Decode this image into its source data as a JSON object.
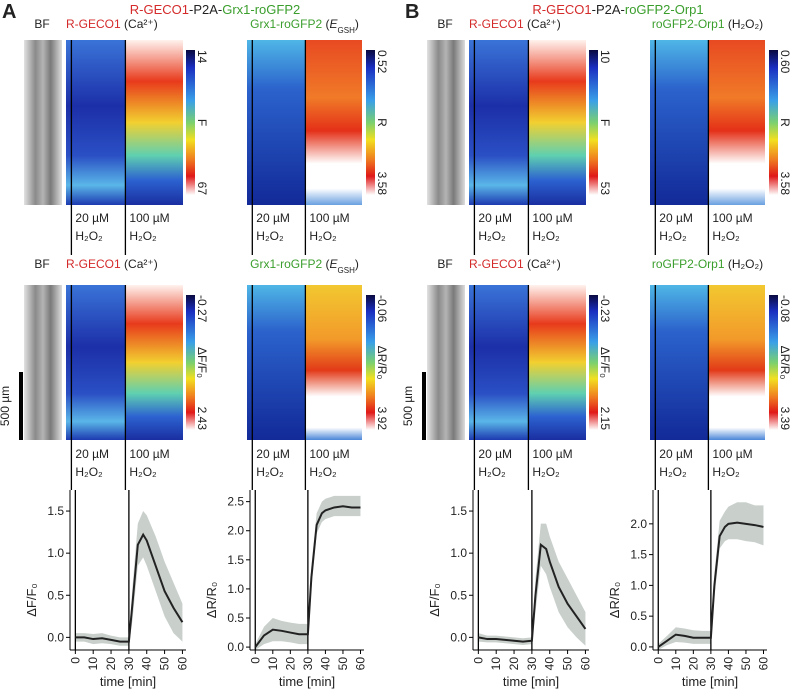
{
  "panels": [
    {
      "letter": "A",
      "title": [
        {
          "text": "R-GECO1",
          "color": "#d42a2a"
        },
        {
          "text": "-P2A-",
          "color": "#222222"
        },
        {
          "text": "Grx1-roGFP2",
          "color": "#3a9e2c"
        }
      ],
      "bf_label": "BF",
      "scale_bar": "500 µm",
      "rows": [
        [
          {
            "sensor": "R-GECO1",
            "sensor_color": "#d42a2a",
            "suffix": "(Ca²⁺)",
            "cbar_label": "F",
            "cbar_min": 14,
            "cbar_max": 67
          },
          {
            "sensor": "Grx1-roGFP2",
            "sensor_color": "#3a9e2c",
            "suffix": {
              "pre": "(",
              "italic": "E",
              "sub": "GSH",
              "post": ")"
            },
            "cbar_label": "R",
            "cbar_min": 0.52,
            "cbar_max": 3.58
          }
        ],
        [
          {
            "sensor": "R-GECO1",
            "sensor_color": "#d42a2a",
            "suffix": "(Ca²⁺)",
            "cbar_label": "ΔF/F₀",
            "cbar_min": -0.27,
            "cbar_max": 2.43
          },
          {
            "sensor": "Grx1-roGFP2",
            "sensor_color": "#3a9e2c",
            "suffix": {
              "pre": "(",
              "italic": "E",
              "sub": "GSH",
              "post": ")"
            },
            "cbar_label": "ΔR/R₀",
            "cbar_min": -0.06,
            "cbar_max": 3.92
          }
        ]
      ]
    },
    {
      "letter": "B",
      "title": [
        {
          "text": "R-GECO1",
          "color": "#d42a2a"
        },
        {
          "text": "-P2A-",
          "color": "#222222"
        },
        {
          "text": "roGFP2-Orp1",
          "color": "#3a9e2c"
        }
      ],
      "bf_label": "BF",
      "scale_bar": "500 µm",
      "rows": [
        [
          {
            "sensor": "R-GECO1",
            "sensor_color": "#d42a2a",
            "suffix": "(Ca²⁺)",
            "cbar_label": "F",
            "cbar_min": 10,
            "cbar_max": 53
          },
          {
            "sensor": "roGFP2-Orp1",
            "sensor_color": "#3a9e2c",
            "suffix": "(H₂O₂)",
            "cbar_label": "R",
            "cbar_min": {
              "value": 0.6,
              "label": "0.60"
            },
            "cbar_max": 3.58
          }
        ],
        [
          {
            "sensor": "R-GECO1",
            "sensor_color": "#d42a2a",
            "suffix": "(Ca²⁺)",
            "cbar_label": "ΔF/F₀",
            "cbar_min": -0.23,
            "cbar_max": 2.15
          },
          {
            "sensor": "roGFP2-Orp1",
            "sensor_color": "#3a9e2c",
            "suffix": "(H₂O₂)",
            "cbar_label": "ΔR/R₀",
            "cbar_min": -0.08,
            "cbar_max": 3.39
          }
        ]
      ]
    }
  ],
  "treatments": [
    {
      "conc": "20 µM",
      "agent": "H₂O₂"
    },
    {
      "conc": "100 µM",
      "agent": "H₂O₂"
    }
  ],
  "chart_data": [
    {
      "type": "line",
      "ylabel": "ΔF/F₀",
      "xlabel": "time [min]",
      "color": "#222222",
      "band_color": "#c9d0cc",
      "x": [
        0,
        5,
        10,
        15,
        20,
        25,
        30,
        32,
        35,
        38,
        40,
        45,
        50,
        55,
        60
      ],
      "values": [
        0,
        0,
        -0.02,
        -0.01,
        -0.03,
        -0.05,
        -0.05,
        0.4,
        1.1,
        1.22,
        1.15,
        0.85,
        0.55,
        0.35,
        0.18
      ],
      "lower": [
        -0.05,
        -0.05,
        -0.08,
        -0.07,
        -0.08,
        -0.1,
        -0.1,
        0.2,
        0.85,
        0.95,
        0.85,
        0.55,
        0.25,
        0.05,
        -0.05
      ],
      "upper": [
        0.05,
        0.05,
        0.04,
        0.05,
        0.02,
        0,
        0,
        0.6,
        1.35,
        1.5,
        1.45,
        1.2,
        0.9,
        0.65,
        0.4
      ],
      "vlines": [
        0,
        30
      ],
      "xlim": [
        -3,
        62
      ],
      "ylim": [
        -0.15,
        1.75
      ],
      "xticks": [
        0,
        10,
        20,
        30,
        40,
        50,
        60
      ],
      "yticks": [
        {
          "value": 0,
          "label": "0.0"
        },
        0.5,
        {
          "value": 1,
          "label": "1.0"
        },
        1.5
      ]
    },
    {
      "type": "line",
      "ylabel": "ΔR/R₀",
      "xlabel": "time [min]",
      "color": "#222222",
      "band_color": "#c9d0cc",
      "x": [
        0,
        5,
        10,
        15,
        20,
        25,
        30,
        32,
        35,
        38,
        40,
        45,
        50,
        55,
        60
      ],
      "values": [
        0,
        0.2,
        0.3,
        0.28,
        0.25,
        0.22,
        0.22,
        1.2,
        2.1,
        2.3,
        2.35,
        2.4,
        2.42,
        2.4,
        2.4
      ],
      "lower": [
        -0.05,
        0.05,
        0.1,
        0.1,
        0.08,
        0.05,
        0.05,
        1.0,
        1.95,
        2.15,
        2.2,
        2.25,
        2.25,
        2.25,
        2.25
      ],
      "upper": [
        0.05,
        0.35,
        0.5,
        0.45,
        0.42,
        0.4,
        0.4,
        1.4,
        2.3,
        2.5,
        2.55,
        2.6,
        2.6,
        2.6,
        2.6
      ],
      "vlines": [
        0,
        30
      ],
      "xlim": [
        -3,
        62
      ],
      "ylim": [
        -0.05,
        2.7
      ],
      "xticks": [
        0,
        10,
        20,
        30,
        40,
        50,
        60
      ],
      "yticks": [
        {
          "value": 0,
          "label": "0.0"
        },
        0.5,
        {
          "value": 1,
          "label": "1.0"
        },
        1.5,
        {
          "value": 2,
          "label": "2.0"
        },
        2.5
      ]
    },
    {
      "type": "line",
      "ylabel": "ΔF/F₀",
      "xlabel": "time [min]",
      "color": "#222222",
      "band_color": "#c9d0cc",
      "x": [
        0,
        5,
        10,
        15,
        20,
        25,
        30,
        32,
        35,
        38,
        40,
        45,
        50,
        55,
        60
      ],
      "values": [
        0,
        -0.02,
        -0.02,
        -0.03,
        -0.04,
        -0.05,
        -0.04,
        0.5,
        1.1,
        1.05,
        0.9,
        0.6,
        0.4,
        0.25,
        0.1
      ],
      "lower": [
        -0.05,
        -0.06,
        -0.06,
        -0.07,
        -0.08,
        -0.09,
        -0.08,
        0.3,
        0.85,
        0.75,
        0.6,
        0.3,
        0.12,
        0,
        -0.1
      ],
      "upper": [
        0.05,
        0.02,
        0.02,
        0.01,
        0,
        -0.01,
        0,
        0.7,
        1.35,
        1.35,
        1.2,
        0.9,
        0.7,
        0.5,
        0.3
      ],
      "vlines": [
        0,
        30
      ],
      "xlim": [
        -3,
        62
      ],
      "ylim": [
        -0.15,
        1.75
      ],
      "xticks": [
        0,
        10,
        20,
        30,
        40,
        50,
        60
      ],
      "yticks": [
        {
          "value": 0,
          "label": "0.0"
        },
        0.5,
        {
          "value": 1,
          "label": "1.0"
        },
        1.5
      ]
    },
    {
      "type": "line",
      "ylabel": "ΔR/R₀",
      "xlabel": "time [min]",
      "color": "#222222",
      "band_color": "#c9d0cc",
      "x": [
        0,
        5,
        10,
        15,
        20,
        25,
        30,
        32,
        35,
        38,
        40,
        45,
        50,
        55,
        60
      ],
      "values": [
        0,
        0.1,
        0.2,
        0.18,
        0.15,
        0.15,
        0.15,
        1.0,
        1.8,
        1.95,
        2.0,
        2.02,
        2.0,
        1.98,
        1.95
      ],
      "lower": [
        -0.05,
        0.03,
        0.08,
        0.07,
        0.05,
        0.05,
        0.05,
        0.8,
        1.6,
        1.72,
        1.75,
        1.75,
        1.72,
        1.7,
        1.65
      ],
      "upper": [
        0.05,
        0.18,
        0.32,
        0.3,
        0.27,
        0.26,
        0.26,
        1.2,
        2.05,
        2.2,
        2.28,
        2.35,
        2.35,
        2.3,
        2.3
      ],
      "vlines": [
        0,
        30
      ],
      "xlim": [
        -3,
        62
      ],
      "ylim": [
        -0.05,
        2.55
      ],
      "xticks": [
        0,
        10,
        20,
        30,
        40,
        50,
        60
      ],
      "yticks": [
        {
          "value": 0,
          "label": "0.0"
        },
        0.5,
        {
          "value": 1,
          "label": "1.0"
        },
        1.5,
        {
          "value": 2,
          "label": "2.0"
        }
      ]
    }
  ]
}
